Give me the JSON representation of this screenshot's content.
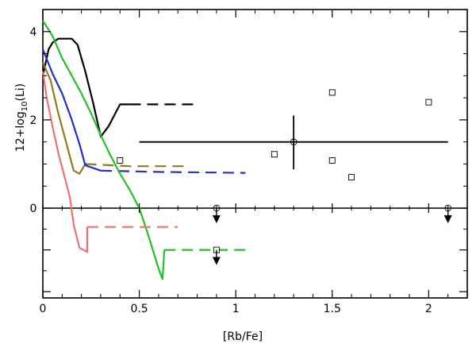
{
  "chart_data": {
    "type": "line",
    "xlabel": "[Rb/Fe]",
    "ylabel": "12+log10(Li)",
    "ylabel_parts": {
      "pre": "12+log",
      "sub": "10",
      "post": "(Li)"
    },
    "xlim": [
      0,
      2.2
    ],
    "ylim_top": [
      0,
      4.5
    ],
    "ylim_bottom": [
      -2.15,
      0
    ],
    "x_ticks": [
      {
        "value": 0,
        "label": "0"
      },
      {
        "value": 0.5,
        "label": "0.5"
      },
      {
        "value": 1,
        "label": "1"
      },
      {
        "value": 1.5,
        "label": "1.5"
      },
      {
        "value": 2,
        "label": "2"
      }
    ],
    "y_ticks_top": [
      {
        "value": 0,
        "label": "0"
      },
      {
        "value": 2,
        "label": "2"
      },
      {
        "value": 4,
        "label": "4"
      }
    ],
    "series": [
      {
        "color": "#000000",
        "solid": [
          [
            0.0,
            3.0
          ],
          [
            0.03,
            3.6
          ],
          [
            0.05,
            3.75
          ],
          [
            0.08,
            3.84
          ],
          [
            0.15,
            3.84
          ],
          [
            0.18,
            3.7
          ],
          [
            0.22,
            3.1
          ],
          [
            0.26,
            2.4
          ],
          [
            0.3,
            1.62
          ],
          [
            0.34,
            1.85
          ],
          [
            0.4,
            2.35
          ],
          [
            0.45,
            2.35
          ]
        ],
        "dashed": [
          [
            0.45,
            2.35
          ],
          [
            0.8,
            2.35
          ]
        ]
      },
      {
        "color": "#8b7d1e",
        "solid": [
          [
            0.0,
            3.3
          ],
          [
            0.04,
            2.9
          ],
          [
            0.08,
            2.15
          ],
          [
            0.12,
            1.5
          ],
          [
            0.16,
            0.85
          ],
          [
            0.19,
            0.78
          ],
          [
            0.22,
            1.0
          ]
        ],
        "dashed": [
          [
            0.22,
            1.0
          ],
          [
            0.45,
            0.95
          ],
          [
            0.75,
            0.95
          ]
        ]
      },
      {
        "color": "#2030c8",
        "solid": [
          [
            0.0,
            3.6
          ],
          [
            0.05,
            3.05
          ],
          [
            0.1,
            2.6
          ],
          [
            0.15,
            2.0
          ],
          [
            0.19,
            1.45
          ],
          [
            0.22,
            0.97
          ],
          [
            0.3,
            0.85
          ]
        ],
        "dashed": [
          [
            0.3,
            0.85
          ],
          [
            0.6,
            0.82
          ],
          [
            1.05,
            0.8
          ]
        ]
      },
      {
        "color": "#22c022",
        "solid": [
          [
            0.0,
            4.25
          ],
          [
            0.05,
            3.9
          ],
          [
            0.1,
            3.4
          ],
          [
            0.15,
            3.0
          ],
          [
            0.2,
            2.6
          ],
          [
            0.25,
            2.15
          ],
          [
            0.3,
            1.65
          ],
          [
            0.35,
            1.2
          ],
          [
            0.4,
            0.78
          ],
          [
            0.45,
            0.42
          ],
          [
            0.5,
            0.0
          ],
          [
            0.55,
            -0.7
          ],
          [
            0.6,
            -1.45
          ],
          [
            0.62,
            -1.7
          ],
          [
            0.63,
            -1.0
          ]
        ],
        "dashed": [
          [
            0.63,
            -1.0
          ],
          [
            0.8,
            -1.0
          ],
          [
            1.05,
            -1.0
          ]
        ]
      },
      {
        "color": "#f07070",
        "solid": [
          [
            0.0,
            3.1
          ],
          [
            0.02,
            2.5
          ],
          [
            0.05,
            1.85
          ],
          [
            0.08,
            1.25
          ],
          [
            0.11,
            0.75
          ],
          [
            0.14,
            0.25
          ],
          [
            0.16,
            -0.4
          ],
          [
            0.19,
            -0.95
          ],
          [
            0.23,
            -1.05
          ],
          [
            0.23,
            -0.45
          ]
        ],
        "dashed": [
          [
            0.23,
            -0.45
          ],
          [
            0.7,
            -0.45
          ]
        ]
      }
    ],
    "points": [
      {
        "x": 0.4,
        "y": 1.08
      },
      {
        "x": 1.2,
        "y": 1.22
      },
      {
        "x": 1.5,
        "y": 1.08
      },
      {
        "x": 1.5,
        "y": 2.62
      },
      {
        "x": 1.6,
        "y": 0.7
      },
      {
        "x": 2.0,
        "y": 2.4
      }
    ],
    "error_point": {
      "x": 1.3,
      "y": 1.5,
      "xerr": [
        0.5,
        2.1
      ],
      "yerr": [
        0.88,
        2.1
      ]
    },
    "upper_limits": [
      {
        "x": 0.9,
        "y": 0.0
      },
      {
        "x": 2.1,
        "y": 0.0
      },
      {
        "x": 0.9,
        "y": -1.0
      }
    ]
  }
}
